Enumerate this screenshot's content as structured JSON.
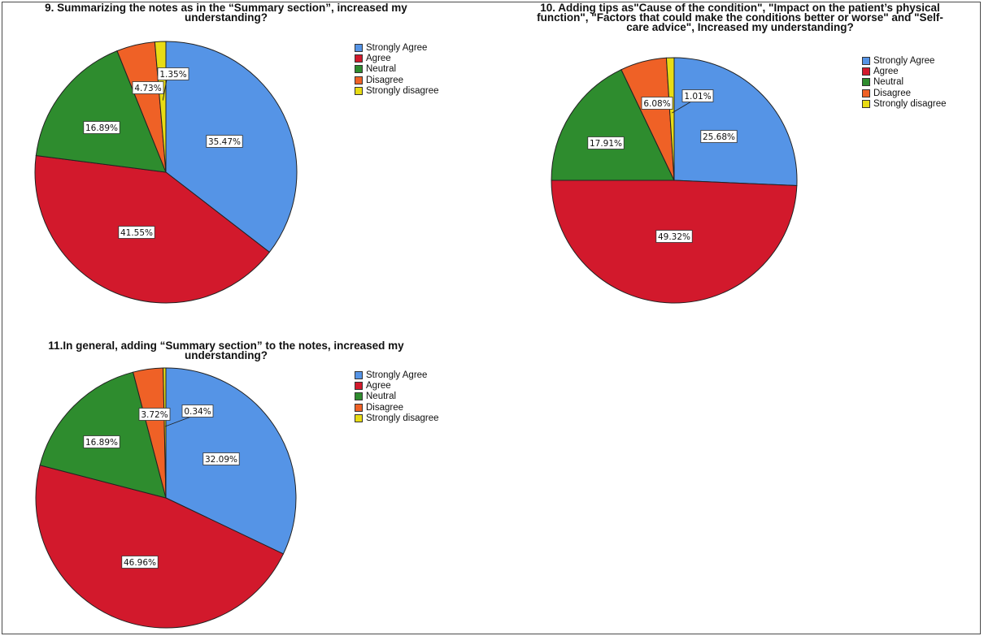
{
  "legend_labels": [
    "Strongly Agree",
    "Agree",
    "Neutral",
    "Disagree",
    "Strongly disagree"
  ],
  "colors": [
    "#5594e6",
    "#d2192c",
    "#2e8c2e",
    "#ef6126",
    "#e8dc14"
  ],
  "chart_data": [
    {
      "type": "pie",
      "title_lines": [
        "9. Summarizing the notes as in the “Summary section”, increased my",
        "understanding?"
      ],
      "categories": [
        "Strongly Agree",
        "Agree",
        "Neutral",
        "Disagree",
        "Strongly disagree"
      ],
      "values": [
        35.47,
        41.55,
        16.89,
        4.73,
        1.35
      ],
      "labels": [
        "35.47%",
        "41.55%",
        "16.89%",
        "4.73%",
        "1.35%"
      ],
      "legend": "right"
    },
    {
      "type": "pie",
      "title_lines": [
        "10. Adding tips as\"Cause of the condition\", \"Impact on the patient’s physical",
        "function\", \"Factors that could make the conditions better or worse\" and \"Self-",
        "care advice\", Increased my understanding?"
      ],
      "categories": [
        "Strongly Agree",
        "Agree",
        "Neutral",
        "Disagree",
        "Strongly disagree"
      ],
      "values": [
        25.68,
        49.32,
        17.91,
        6.08,
        1.01
      ],
      "labels": [
        "25.68%",
        "49.32%",
        "17.91%",
        "6.08%",
        "1.01%"
      ],
      "legend": "right"
    },
    {
      "type": "pie",
      "title_lines": [
        "11.In general, adding “Summary section” to the notes, increased my",
        "understanding?"
      ],
      "categories": [
        "Strongly Agree",
        "Agree",
        "Neutral",
        "Disagree",
        "Strongly disagree"
      ],
      "values": [
        32.09,
        46.96,
        16.89,
        3.72,
        0.34
      ],
      "labels": [
        "32.09%",
        "46.96%",
        "16.89%",
        "3.72%",
        "0.34%"
      ],
      "legend": "right"
    }
  ]
}
